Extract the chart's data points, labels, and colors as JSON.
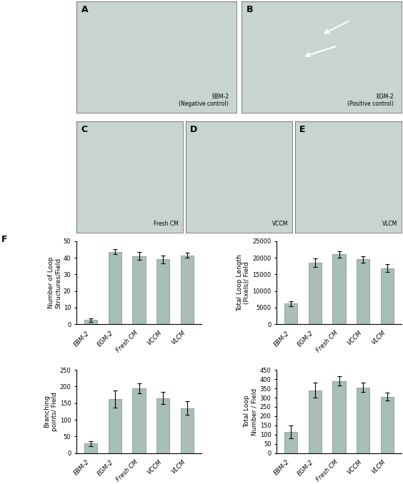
{
  "categories": [
    "EBM-2",
    "EGM-2",
    "Fresh CM",
    "VCCM",
    "VLCM"
  ],
  "bar_color": "#a8bfb8",
  "bar_edge_color": "#888888",
  "subplot_titles_cde": [
    "Fresh CM",
    "VCCM",
    "VLCM"
  ],
  "top_labels": [
    "EBM-2\n(Negative control)",
    "EGM-2\n(Positive control)"
  ],
  "chart1": {
    "ylabel": "Number of Loop\nStructures/Field",
    "ylim": [
      0,
      50
    ],
    "yticks": [
      0,
      10,
      20,
      30,
      40,
      50
    ],
    "values": [
      2.5,
      43.5,
      41.0,
      39.0,
      41.5
    ],
    "errors": [
      1.0,
      1.5,
      2.5,
      2.5,
      1.5
    ]
  },
  "chart2": {
    "ylabel": "Total Loop Length\n(Pixels)/ Field",
    "ylim": [
      0,
      25000
    ],
    "yticks": [
      0,
      5000,
      10000,
      15000,
      20000,
      25000
    ],
    "values": [
      6200,
      18500,
      21000,
      19500,
      16800
    ],
    "errors": [
      800,
      1200,
      900,
      1000,
      1200
    ]
  },
  "chart3": {
    "ylabel": "Branching\npoints/ Field",
    "ylim": [
      0,
      250
    ],
    "yticks": [
      0,
      50,
      100,
      150,
      200,
      250
    ],
    "values": [
      28,
      162,
      195,
      165,
      135
    ],
    "errors": [
      8,
      25,
      15,
      18,
      20
    ]
  },
  "chart4": {
    "ylabel": "Total Loop\nNumber / Field",
    "ylim": [
      0,
      450
    ],
    "yticks": [
      0,
      50,
      100,
      150,
      200,
      250,
      300,
      350,
      400,
      450
    ],
    "values": [
      115,
      340,
      390,
      355,
      305
    ],
    "errors": [
      35,
      40,
      25,
      25,
      20
    ]
  },
  "image_bg": "#c8d4cf",
  "figure_bg": "#ffffff",
  "fontsize_label": 6.5,
  "fontsize_tick": 6,
  "fontsize_panel": 9
}
